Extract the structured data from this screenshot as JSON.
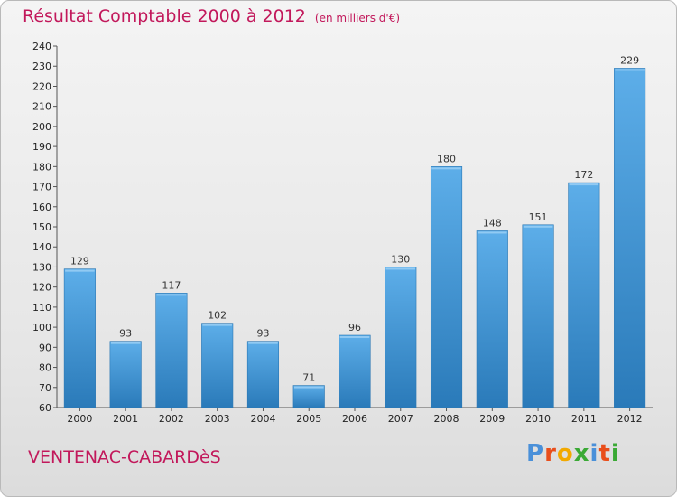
{
  "chart_data": {
    "type": "bar",
    "title": "Résultat Comptable 2000 à 2012",
    "subtitle": "(en milliers d'€)",
    "categories": [
      "2000",
      "2001",
      "2002",
      "2003",
      "2004",
      "2005",
      "2006",
      "2007",
      "2008",
      "2009",
      "2010",
      "2011",
      "2012"
    ],
    "values": [
      129,
      93,
      117,
      102,
      93,
      71,
      96,
      130,
      180,
      148,
      151,
      172,
      229
    ],
    "ylim": [
      60,
      240
    ],
    "yticks": [
      60,
      70,
      80,
      90,
      100,
      110,
      120,
      130,
      140,
      150,
      160,
      170,
      180,
      190,
      200,
      210,
      220,
      230,
      240
    ],
    "xlabel": "",
    "ylabel": "",
    "grid": false,
    "colors": {
      "bar_top": "#5daee9",
      "bar_bottom": "#2a7ab9",
      "title": "#c2185b"
    }
  },
  "footer": {
    "commune": "VENTENAC-CABARDèS",
    "brand_letters": [
      "P",
      "r",
      "o",
      "x",
      "i",
      "t",
      "i"
    ],
    "brand_colors": [
      "#4a90d9",
      "#e94e1b",
      "#f2a900",
      "#3aa935",
      "#4a90d9",
      "#e94e1b",
      "#3aa935"
    ]
  }
}
